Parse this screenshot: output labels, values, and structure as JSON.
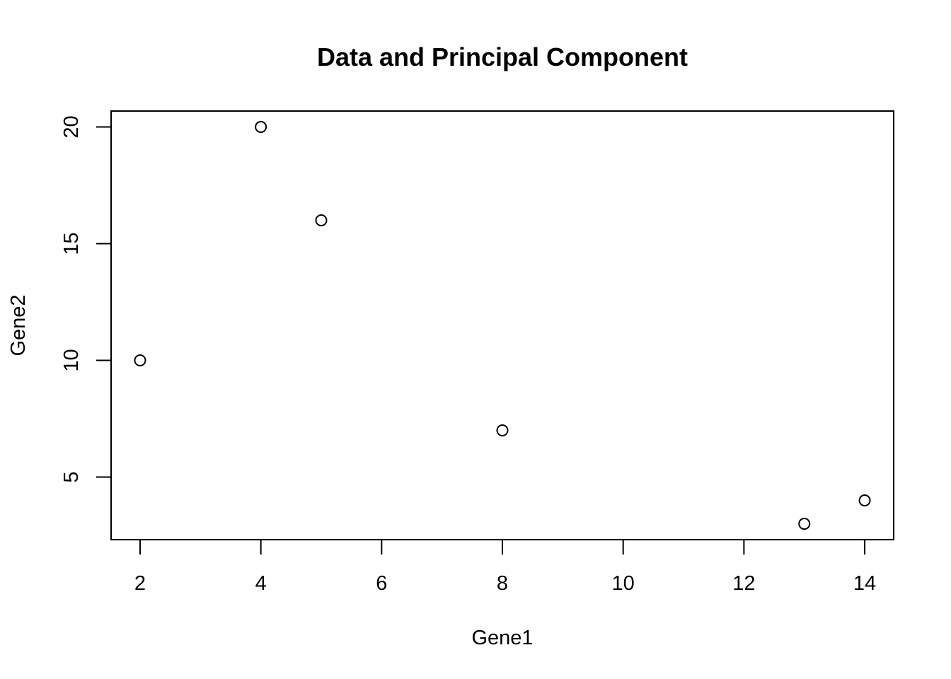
{
  "chart_data": {
    "type": "scatter",
    "title": "Data and Principal Component",
    "xlabel": "Gene1",
    "ylabel": "Gene2",
    "xlim": [
      1.52,
      14.48
    ],
    "ylim": [
      2.32,
      20.68
    ],
    "x_ticks": [
      2,
      4,
      6,
      8,
      10,
      12,
      14
    ],
    "y_ticks": [
      5,
      10,
      15,
      20
    ],
    "grid": false,
    "legend": "none",
    "point_style": "open-circle",
    "point_color": "#000000",
    "series": [
      {
        "x": [
          2,
          4,
          5,
          8,
          13,
          14
        ],
        "y": [
          10,
          20,
          16,
          7,
          3,
          4
        ]
      }
    ]
  }
}
